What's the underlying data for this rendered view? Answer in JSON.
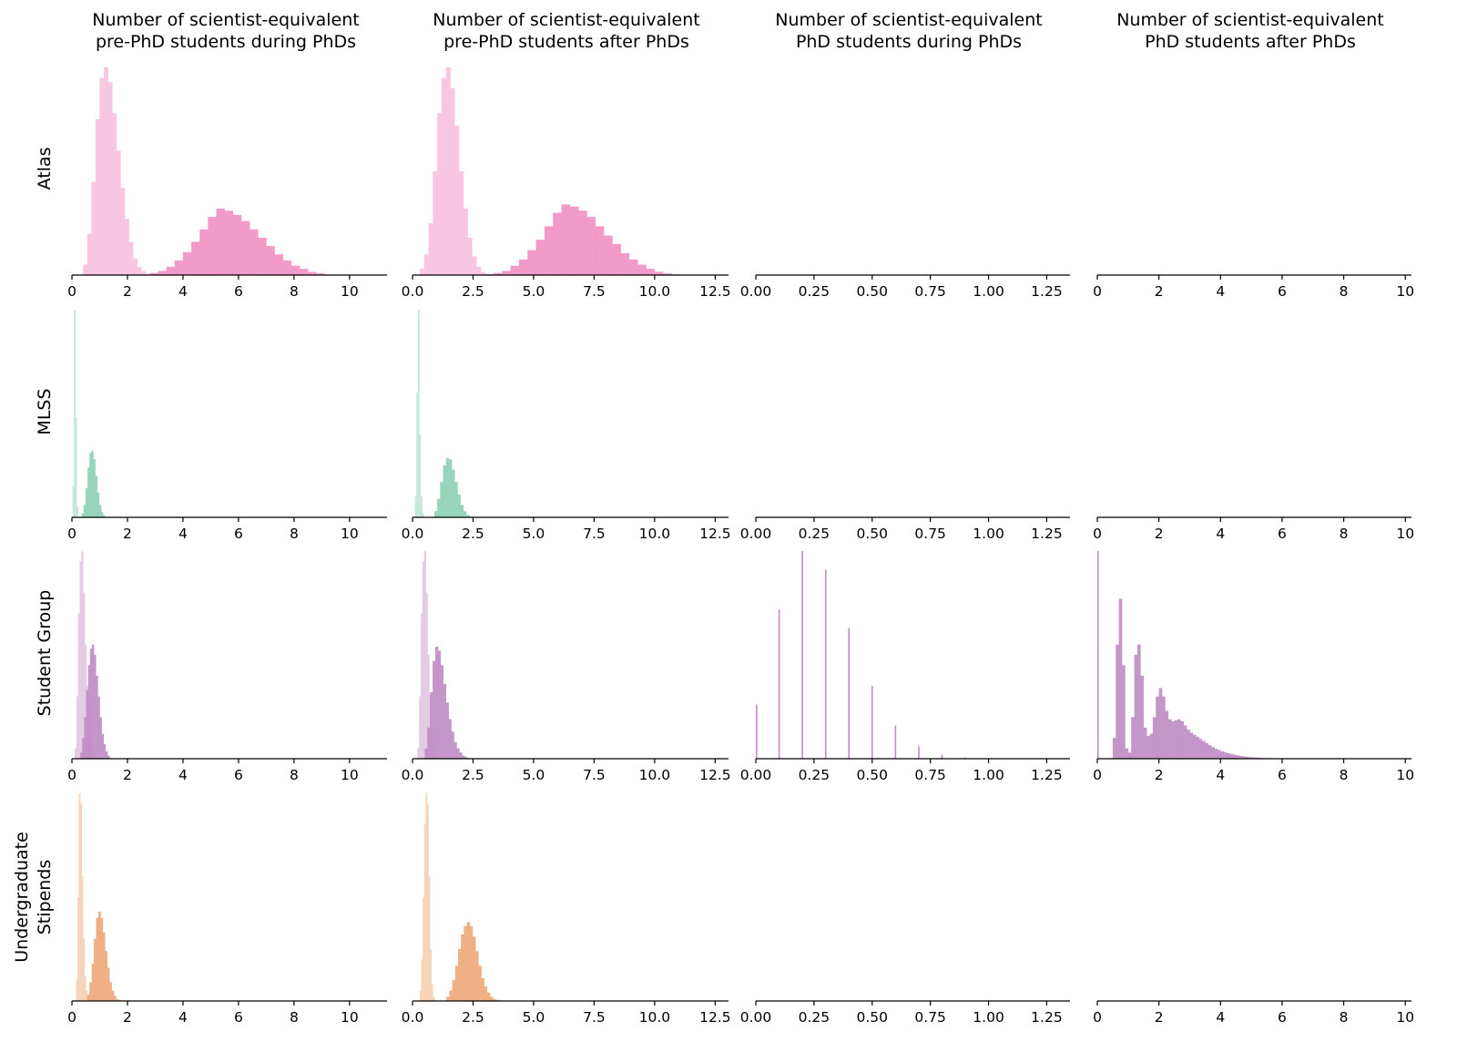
{
  "chart_data": {
    "type": "histogram",
    "column_titles": [
      [
        "Number of scientist-equivalent",
        "pre-PhD students during PhDs"
      ],
      [
        "Number of scientist-equivalent",
        "pre-PhD students after PhDs"
      ],
      [
        "Number of scientist-equivalent",
        "PhD students during PhDs"
      ],
      [
        "Number of scientist-equivalent",
        "PhD students after PhDs"
      ]
    ],
    "row_labels": [
      [
        "Atlas"
      ],
      [
        "MLSS"
      ],
      [
        "Student Group"
      ],
      [
        "Undergraduate",
        "Stipends"
      ]
    ],
    "columns": [
      {
        "xlim": [
          0,
          11.35
        ],
        "ticks": [
          {
            "v": 0,
            "l": "0"
          },
          {
            "v": 2,
            "l": "2"
          },
          {
            "v": 4,
            "l": "4"
          },
          {
            "v": 6,
            "l": "6"
          },
          {
            "v": 8,
            "l": "8"
          },
          {
            "v": 10,
            "l": "10"
          }
        ]
      },
      {
        "xlim": [
          0,
          13.05
        ],
        "ticks": [
          {
            "v": 0,
            "l": "0.0"
          },
          {
            "v": 2.5,
            "l": "2.5"
          },
          {
            "v": 5,
            "l": "5.0"
          },
          {
            "v": 7.5,
            "l": "7.5"
          },
          {
            "v": 10,
            "l": "10.0"
          },
          {
            "v": 12.5,
            "l": "12.5"
          }
        ]
      },
      {
        "xlim": [
          0,
          1.35
        ],
        "ticks": [
          {
            "v": 0,
            "l": "0.00"
          },
          {
            "v": 0.25,
            "l": "0.25"
          },
          {
            "v": 0.5,
            "l": "0.50"
          },
          {
            "v": 0.75,
            "l": "0.75"
          },
          {
            "v": 1,
            "l": "1.00"
          },
          {
            "v": 1.25,
            "l": "1.25"
          }
        ]
      },
      {
        "xlim": [
          0,
          10.2
        ],
        "ticks": [
          {
            "v": 0,
            "l": "0"
          },
          {
            "v": 2,
            "l": "2"
          },
          {
            "v": 4,
            "l": "4"
          },
          {
            "v": 6,
            "l": "6"
          },
          {
            "v": 8,
            "l": "8"
          },
          {
            "v": 10,
            "l": "10"
          }
        ]
      }
    ],
    "panels": [
      {
        "row": 0,
        "col": 0,
        "series": [
          {
            "name": "light",
            "color": "#f8c6e1",
            "bin_start": 0.4,
            "bin_width": 0.15,
            "values": [
              0.05,
              0.2,
              0.45,
              0.75,
              0.95,
              1.0,
              0.93,
              0.78,
              0.6,
              0.42,
              0.27,
              0.16,
              0.08,
              0.04,
              0.02
            ]
          },
          {
            "name": "dark",
            "color": "#f193c4",
            "bin_start": 2.5,
            "bin_width": 0.3,
            "values": [
              0.005,
              0.01,
              0.02,
              0.04,
              0.07,
              0.11,
              0.16,
              0.22,
              0.28,
              0.32,
              0.31,
              0.29,
              0.26,
              0.22,
              0.18,
              0.14,
              0.1,
              0.07,
              0.045,
              0.03,
              0.015,
              0.008,
              0.003
            ]
          }
        ]
      },
      {
        "row": 0,
        "col": 1,
        "series": [
          {
            "name": "light",
            "color": "#f8c6e1",
            "bin_start": 0.3,
            "bin_width": 0.18,
            "values": [
              0.03,
              0.1,
              0.25,
              0.5,
              0.78,
              0.95,
              1.0,
              0.9,
              0.72,
              0.5,
              0.32,
              0.18,
              0.09,
              0.04,
              0.015
            ]
          },
          {
            "name": "dark",
            "color": "#f193c4",
            "bin_start": 3.0,
            "bin_width": 0.35,
            "values": [
              0.005,
              0.01,
              0.02,
              0.045,
              0.075,
              0.12,
              0.17,
              0.235,
              0.3,
              0.34,
              0.33,
              0.31,
              0.28,
              0.235,
              0.19,
              0.15,
              0.105,
              0.075,
              0.05,
              0.03,
              0.016,
              0.008,
              0.003
            ]
          }
        ]
      },
      {
        "row": 0,
        "col": 2,
        "series": []
      },
      {
        "row": 0,
        "col": 3,
        "series": []
      },
      {
        "row": 1,
        "col": 0,
        "series": [
          {
            "name": "light",
            "color": "#c5e8d8",
            "bin_start": 0.02,
            "bin_width": 0.05,
            "values": [
              0.15,
              1.0,
              0.48,
              0.05
            ]
          },
          {
            "name": "dark",
            "color": "#8fd1b6",
            "bin_start": 0.35,
            "bin_width": 0.07,
            "values": [
              0.02,
              0.06,
              0.14,
              0.24,
              0.31,
              0.32,
              0.28,
              0.2,
              0.12,
              0.06,
              0.025,
              0.01
            ]
          }
        ]
      },
      {
        "row": 1,
        "col": 1,
        "series": [
          {
            "name": "light",
            "color": "#c5e8d8",
            "bin_start": 0.1,
            "bin_width": 0.06,
            "values": [
              0.1,
              0.6,
              1.0,
              0.4,
              0.1,
              0.02
            ]
          },
          {
            "name": "dark",
            "color": "#8fd1b6",
            "bin_start": 0.9,
            "bin_width": 0.12,
            "values": [
              0.03,
              0.09,
              0.17,
              0.25,
              0.285,
              0.28,
              0.23,
              0.17,
              0.11,
              0.06,
              0.03,
              0.012,
              0.005
            ]
          }
        ]
      },
      {
        "row": 1,
        "col": 2,
        "series": []
      },
      {
        "row": 1,
        "col": 3,
        "series": []
      },
      {
        "row": 2,
        "col": 0,
        "series": [
          {
            "name": "light",
            "color": "#e3cbe4",
            "bin_start": 0.1,
            "bin_width": 0.06,
            "values": [
              0.05,
              0.3,
              0.7,
              0.95,
              1.0,
              0.8,
              0.55,
              0.35,
              0.2,
              0.1,
              0.05,
              0.02,
              0.01
            ]
          },
          {
            "name": "dark",
            "color": "#bf8dc4",
            "bin_start": 0.3,
            "bin_width": 0.07,
            "values": [
              0.03,
              0.1,
              0.2,
              0.33,
              0.45,
              0.53,
              0.55,
              0.5,
              0.4,
              0.3,
              0.2,
              0.12,
              0.07,
              0.035,
              0.015,
              0.005
            ]
          }
        ]
      },
      {
        "row": 2,
        "col": 1,
        "series": [
          {
            "name": "light",
            "color": "#e3cbe4",
            "bin_start": 0.2,
            "bin_width": 0.07,
            "values": [
              0.05,
              0.3,
              0.7,
              0.95,
              1.0,
              0.8,
              0.5,
              0.3,
              0.15,
              0.07,
              0.03,
              0.01
            ]
          },
          {
            "name": "dark",
            "color": "#bf8dc4",
            "bin_start": 0.5,
            "bin_width": 0.11,
            "values": [
              0.05,
              0.15,
              0.32,
              0.47,
              0.54,
              0.52,
              0.45,
              0.36,
              0.27,
              0.19,
              0.13,
              0.08,
              0.05,
              0.03,
              0.015,
              0.008,
              0.003
            ]
          }
        ]
      },
      {
        "row": 2,
        "col": 2,
        "series": [
          {
            "name": "spikes",
            "color": "#bf8dc4",
            "bin_width": 0.006,
            "x": [
              0,
              0.1,
              0.2,
              0.3,
              0.4,
              0.5,
              0.6,
              0.7,
              0.8,
              0.9
            ],
            "values": [
              0.26,
              0.72,
              1.0,
              0.91,
              0.63,
              0.35,
              0.16,
              0.06,
              0.02,
              0.005
            ]
          }
        ]
      },
      {
        "row": 2,
        "col": 3,
        "series": [
          {
            "name": "spike-zero",
            "color": "#bf8dc4",
            "bin_width": 0.03,
            "x": [
              0
            ],
            "values": [
              1.0
            ]
          },
          {
            "name": "dark",
            "color": "#bf8dc4",
            "bin_start": 0.5,
            "bin_width": 0.1,
            "values": [
              0.1,
              0.55,
              0.77,
              0.45,
              0.05,
              0.03,
              0.2,
              0.5,
              0.55,
              0.4,
              0.15,
              0.11,
              0.12,
              0.2,
              0.3,
              0.34,
              0.3,
              0.23,
              0.19,
              0.18,
              0.185,
              0.19,
              0.18,
              0.16,
              0.14,
              0.125,
              0.115,
              0.105,
              0.095,
              0.085,
              0.075,
              0.065,
              0.056,
              0.048,
              0.042,
              0.036,
              0.031,
              0.027,
              0.023,
              0.02,
              0.017,
              0.014,
              0.012,
              0.01,
              0.008,
              0.007,
              0.006,
              0.005,
              0.004,
              0.003,
              0.003,
              0.002,
              0.002,
              0.001,
              0.001
            ]
          }
        ]
      },
      {
        "row": 3,
        "col": 0,
        "series": [
          {
            "name": "light",
            "color": "#f6d4b9",
            "bin_start": 0.15,
            "bin_width": 0.05,
            "values": [
              0.1,
              0.5,
              1.0,
              0.95,
              0.6,
              0.3,
              0.12,
              0.05,
              0.02
            ]
          },
          {
            "name": "dark",
            "color": "#eda97a",
            "bin_start": 0.55,
            "bin_width": 0.08,
            "values": [
              0.03,
              0.09,
              0.18,
              0.3,
              0.4,
              0.43,
              0.4,
              0.33,
              0.24,
              0.16,
              0.09,
              0.05,
              0.025,
              0.01,
              0.005
            ]
          }
        ]
      },
      {
        "row": 3,
        "col": 1,
        "series": [
          {
            "name": "light",
            "color": "#f6d4b9",
            "bin_start": 0.3,
            "bin_width": 0.06,
            "values": [
              0.05,
              0.2,
              0.5,
              0.85,
              1.0,
              0.95,
              0.6,
              0.25,
              0.08,
              0.02
            ]
          },
          {
            "name": "dark",
            "color": "#eda97a",
            "bin_start": 1.4,
            "bin_width": 0.12,
            "values": [
              0.02,
              0.05,
              0.1,
              0.17,
              0.25,
              0.32,
              0.36,
              0.38,
              0.36,
              0.31,
              0.24,
              0.17,
              0.11,
              0.07,
              0.04,
              0.02,
              0.01,
              0.005
            ]
          }
        ]
      },
      {
        "row": 3,
        "col": 2,
        "series": []
      },
      {
        "row": 3,
        "col": 3,
        "series": []
      }
    ]
  }
}
